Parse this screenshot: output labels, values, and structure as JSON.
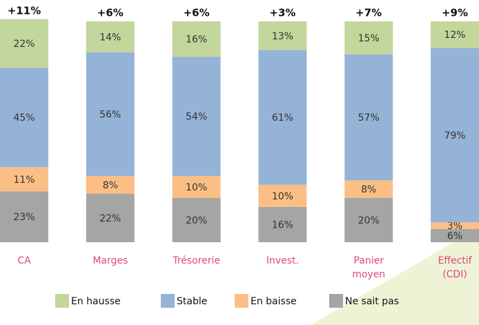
{
  "chart_data": {
    "type": "stacked_bar",
    "categories": [
      "CA",
      "Marges",
      "Trésorerie",
      "Invest.",
      "Panier moyen",
      "Effectif (CDI)"
    ],
    "net_labels": [
      "+11%",
      "+6%",
      "+6%",
      "+3%",
      "+7%",
      "+9%"
    ],
    "series": [
      {
        "name": "Ne sait pas",
        "color": "#a5a5a5",
        "values": [
          23,
          22,
          20,
          16,
          20,
          6
        ],
        "value_labels": [
          "23%",
          "22%",
          "20%",
          "16%",
          "20%",
          "6%"
        ]
      },
      {
        "name": "En baisse",
        "color": "#fbbf85",
        "values": [
          11,
          8,
          10,
          10,
          8,
          3
        ],
        "value_labels": [
          "11%",
          "8%",
          "10%",
          "10%",
          "8%",
          "3%"
        ]
      },
      {
        "name": "Stable",
        "color": "#95b3d7",
        "values": [
          45,
          56,
          54,
          61,
          57,
          79
        ],
        "value_labels": [
          "45%",
          "56%",
          "54%",
          "61%",
          "57%",
          "79%"
        ]
      },
      {
        "name": "En hausse",
        "color": "#c3d69b",
        "values": [
          22,
          14,
          16,
          13,
          15,
          12
        ],
        "value_labels": [
          "22%",
          "14%",
          "16%",
          "13%",
          "15%",
          "12%"
        ]
      }
    ],
    "legend_order": [
      3,
      2,
      1,
      0
    ]
  }
}
